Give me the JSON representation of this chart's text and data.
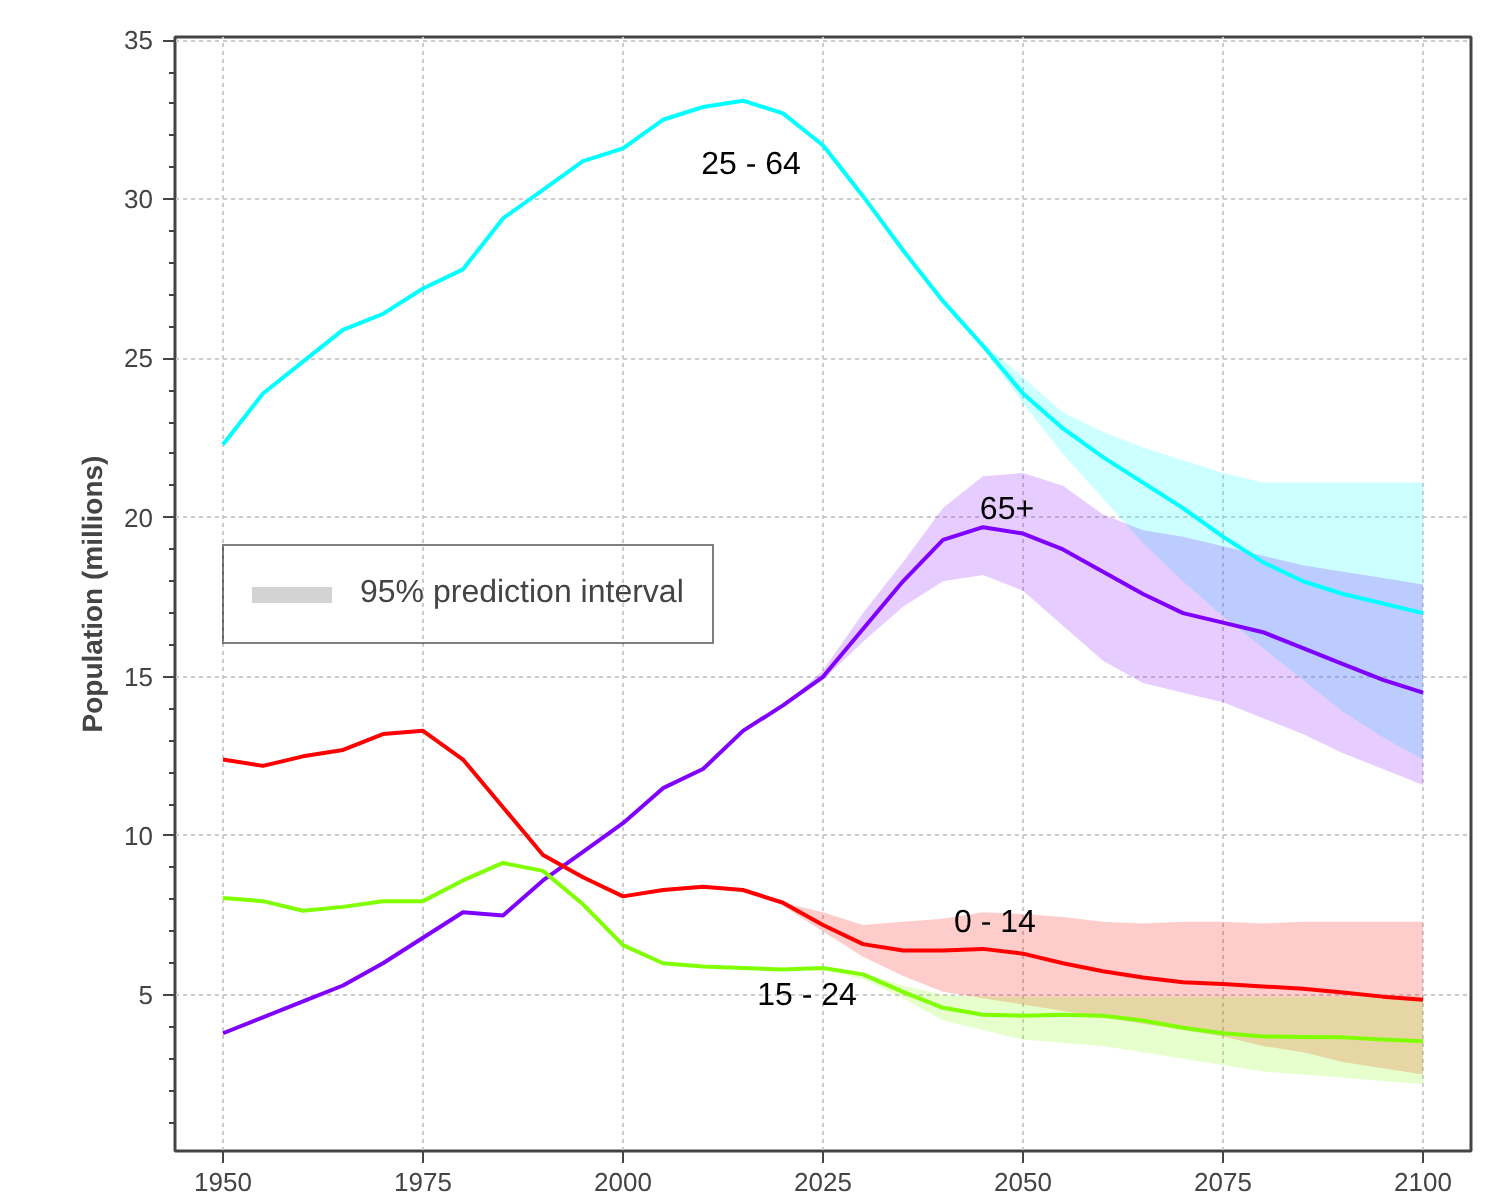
{
  "chart_data": {
    "type": "line",
    "ylabel": "Population (millions)",
    "x": [
      1950,
      1955,
      1960,
      1965,
      1970,
      1975,
      1980,
      1985,
      1990,
      1995,
      2000,
      2005,
      2010,
      2015,
      2020,
      2025,
      2030,
      2035,
      2040,
      2045,
      2050,
      2055,
      2060,
      2065,
      2070,
      2075,
      2080,
      2085,
      2090,
      2095,
      2100
    ],
    "series": [
      {
        "name": "25 - 64",
        "color": "#00ffff",
        "values": [
          22.3,
          23.9,
          24.9,
          25.9,
          26.4,
          27.2,
          27.8,
          29.4,
          30.3,
          31.2,
          31.6,
          32.5,
          32.9,
          33.1,
          32.7,
          31.7,
          30.1,
          28.4,
          26.8,
          25.4,
          23.9,
          22.8,
          21.9,
          21.1,
          20.3,
          19.4,
          18.6,
          18.0,
          17.6,
          17.3,
          17.0
        ],
        "lower": [
          null,
          null,
          null,
          null,
          null,
          null,
          null,
          null,
          null,
          null,
          null,
          null,
          null,
          null,
          32.7,
          31.6,
          30.0,
          28.3,
          26.7,
          25.3,
          23.6,
          22.0,
          20.6,
          19.2,
          18.0,
          16.9,
          15.9,
          14.9,
          13.9,
          13.1,
          12.4
        ],
        "upper": [
          null,
          null,
          null,
          null,
          null,
          null,
          null,
          null,
          null,
          null,
          null,
          null,
          null,
          null,
          32.7,
          31.8,
          30.2,
          28.5,
          26.9,
          25.5,
          24.4,
          23.3,
          22.7,
          22.2,
          21.8,
          21.4,
          21.1,
          21.1,
          21.1,
          21.1,
          21.1
        ]
      },
      {
        "name": "65+",
        "color": "#8000ff",
        "values": [
          3.8,
          4.3,
          4.8,
          5.3,
          6.0,
          6.8,
          7.6,
          7.5,
          8.6,
          9.5,
          10.4,
          11.5,
          12.1,
          13.3,
          14.1,
          15.0,
          16.5,
          18.0,
          19.3,
          19.7,
          19.5,
          19.0,
          18.3,
          17.6,
          17.0,
          16.7,
          16.4,
          15.9,
          15.4,
          14.9,
          14.5
        ],
        "lower": [
          null,
          null,
          null,
          null,
          null,
          null,
          null,
          null,
          null,
          null,
          null,
          null,
          null,
          null,
          14.1,
          14.9,
          16.1,
          17.2,
          18.0,
          18.2,
          17.7,
          16.6,
          15.5,
          14.8,
          14.5,
          14.2,
          13.7,
          13.2,
          12.6,
          12.1,
          11.6
        ],
        "upper": [
          null,
          null,
          null,
          null,
          null,
          null,
          null,
          null,
          null,
          null,
          null,
          null,
          null,
          null,
          14.1,
          15.2,
          17.0,
          18.6,
          20.3,
          21.3,
          21.4,
          21.0,
          20.1,
          19.6,
          19.4,
          19.1,
          18.8,
          18.5,
          18.3,
          18.1,
          17.9
        ]
      },
      {
        "name": "0 - 14",
        "color": "#ff0000",
        "values": [
          12.4,
          12.2,
          12.5,
          12.7,
          13.2,
          13.3,
          12.4,
          10.9,
          9.4,
          8.7,
          8.1,
          8.3,
          8.4,
          8.3,
          7.9,
          7.2,
          6.6,
          6.4,
          6.4,
          6.45,
          6.3,
          6.0,
          5.75,
          5.55,
          5.4,
          5.35,
          5.27,
          5.2,
          5.08,
          4.95,
          4.85
        ],
        "lower": [
          null,
          null,
          null,
          null,
          null,
          null,
          null,
          null,
          null,
          null,
          null,
          null,
          null,
          null,
          7.8,
          7.0,
          6.2,
          5.6,
          5.1,
          4.9,
          4.7,
          4.5,
          4.3,
          4.1,
          3.9,
          3.7,
          3.4,
          3.2,
          2.9,
          2.7,
          2.5
        ],
        "upper": [
          null,
          null,
          null,
          null,
          null,
          null,
          null,
          null,
          null,
          null,
          null,
          null,
          null,
          null,
          7.9,
          7.6,
          7.2,
          7.3,
          7.4,
          7.6,
          7.55,
          7.45,
          7.3,
          7.25,
          7.3,
          7.3,
          7.25,
          7.3,
          7.3,
          7.3,
          7.3
        ]
      },
      {
        "name": "15 - 24",
        "color": "#80ff00",
        "values": [
          8.05,
          7.95,
          7.65,
          7.77,
          7.95,
          7.95,
          8.6,
          9.15,
          8.9,
          7.85,
          6.57,
          6.0,
          5.9,
          5.85,
          5.8,
          5.85,
          5.65,
          5.1,
          4.6,
          4.38,
          4.35,
          4.38,
          4.35,
          4.2,
          3.97,
          3.8,
          3.7,
          3.68,
          3.67,
          3.6,
          3.55
        ],
        "lower": [
          null,
          null,
          null,
          null,
          null,
          null,
          null,
          null,
          null,
          null,
          null,
          null,
          null,
          null,
          5.8,
          5.8,
          5.5,
          4.9,
          4.2,
          3.9,
          3.6,
          3.5,
          3.4,
          3.2,
          3.0,
          2.8,
          2.6,
          2.5,
          2.4,
          2.3,
          2.2
        ],
        "upper": [
          null,
          null,
          null,
          null,
          null,
          null,
          null,
          null,
          null,
          null,
          null,
          null,
          null,
          null,
          5.8,
          5.9,
          5.7,
          5.3,
          5.0,
          4.95,
          4.95,
          4.95,
          4.95,
          4.95,
          4.95,
          4.95,
          4.95,
          4.95,
          4.95,
          4.95,
          4.95
        ]
      }
    ],
    "annotations": [
      "95% prediction interval"
    ],
    "xlim": [
      1944,
      2106
    ],
    "ylim": [
      0.1,
      35.1
    ],
    "xticks": [
      1950,
      1975,
      2000,
      2025,
      2050,
      2075,
      2100
    ],
    "yticks": [
      5,
      10,
      15,
      20,
      25,
      30,
      35
    ],
    "grid": true,
    "line_style": "solid"
  }
}
